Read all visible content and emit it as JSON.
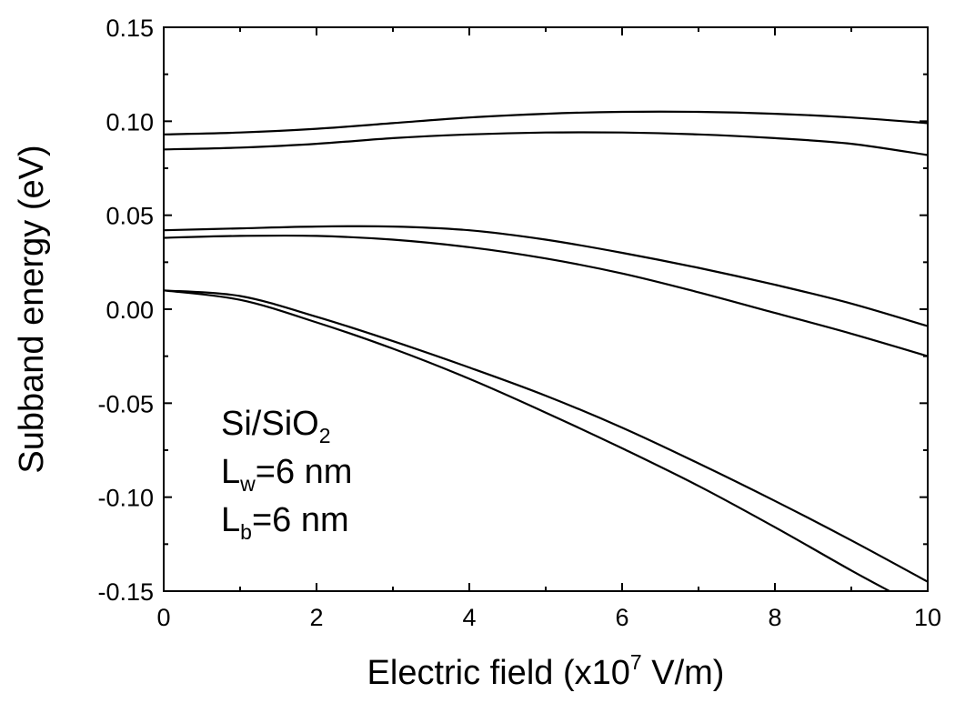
{
  "chart_data": {
    "type": "line",
    "title": "",
    "xlabel": {
      "prefix": "Electric field (x10",
      "superscript": "7",
      "suffix": " V/m)"
    },
    "ylabel": "Subband energy (eV)",
    "xlim": [
      0,
      10
    ],
    "ylim": [
      -0.15,
      0.15
    ],
    "xticks": [
      0,
      2,
      4,
      6,
      8,
      10
    ],
    "xtick_labels": [
      "0",
      "2",
      "4",
      "6",
      "8",
      "10"
    ],
    "yticks": [
      -0.15,
      -0.1,
      -0.05,
      0.0,
      0.05,
      0.1,
      0.15
    ],
    "ytick_labels": [
      "-0.15",
      "-0.10",
      "-0.05",
      "0.00",
      "0.05",
      "0.10",
      "0.15"
    ],
    "grid": false,
    "series": [
      {
        "x": [
          0,
          1,
          2,
          3,
          4,
          5,
          6,
          7,
          8,
          9,
          10
        ],
        "y": [
          0.093,
          0.094,
          0.096,
          0.099,
          0.102,
          0.104,
          0.105,
          0.105,
          0.104,
          0.102,
          0.099
        ]
      },
      {
        "x": [
          0,
          1,
          2,
          3,
          4,
          5,
          6,
          7,
          8,
          9,
          10
        ],
        "y": [
          0.085,
          0.086,
          0.088,
          0.091,
          0.093,
          0.094,
          0.094,
          0.093,
          0.091,
          0.088,
          0.082
        ]
      },
      {
        "x": [
          0,
          1,
          2,
          3,
          4,
          5,
          6,
          7,
          8,
          9,
          10
        ],
        "y": [
          0.042,
          0.043,
          0.044,
          0.044,
          0.042,
          0.037,
          0.03,
          0.022,
          0.013,
          0.003,
          -0.009
        ]
      },
      {
        "x": [
          0,
          1,
          2,
          3,
          4,
          5,
          6,
          7,
          8,
          9,
          10
        ],
        "y": [
          0.038,
          0.039,
          0.039,
          0.037,
          0.033,
          0.027,
          0.019,
          0.009,
          -0.002,
          -0.013,
          -0.025
        ]
      },
      {
        "x": [
          0,
          1,
          2,
          3,
          4,
          5,
          6,
          7,
          8,
          9,
          10
        ],
        "y": [
          0.01,
          0.007,
          -0.004,
          -0.017,
          -0.031,
          -0.046,
          -0.063,
          -0.082,
          -0.102,
          -0.123,
          -0.145
        ]
      },
      {
        "x": [
          0,
          1,
          2,
          3,
          4,
          5,
          6,
          7,
          8,
          9,
          9.5
        ],
        "y": [
          0.01,
          0.005,
          -0.007,
          -0.021,
          -0.037,
          -0.055,
          -0.074,
          -0.094,
          -0.116,
          -0.139,
          -0.15
        ]
      }
    ],
    "annotation": {
      "material": {
        "base": "Si/SiO",
        "sub": "2"
      },
      "well": {
        "base": "L",
        "sub": "w",
        "rest": "=6 nm"
      },
      "barrier": {
        "base": "L",
        "sub": "b",
        "rest": "=6 nm"
      }
    }
  }
}
